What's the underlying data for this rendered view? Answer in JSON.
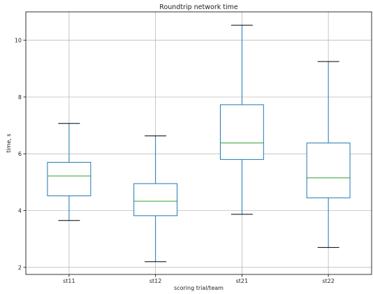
{
  "chart_data": {
    "type": "box",
    "title": "Roundtrip network time",
    "xlabel": "scoring trial/team",
    "ylabel": "time, s",
    "ylim": [
      1.75,
      11.0
    ],
    "yticks": [
      2,
      4,
      6,
      8,
      10
    ],
    "grid": true,
    "categories": [
      "st11",
      "st12",
      "st21",
      "st22"
    ],
    "boxes": [
      {
        "category": "st11",
        "whisker_low": 3.65,
        "q1": 4.52,
        "median": 5.22,
        "q3": 5.7,
        "whisker_high": 7.07
      },
      {
        "category": "st12",
        "whisker_low": 2.2,
        "q1": 3.82,
        "median": 4.33,
        "q3": 4.95,
        "whisker_high": 6.63
      },
      {
        "category": "st21",
        "whisker_low": 3.87,
        "q1": 5.8,
        "median": 6.38,
        "q3": 7.73,
        "whisker_high": 10.53
      },
      {
        "category": "st22",
        "whisker_low": 2.7,
        "q1": 4.45,
        "median": 5.15,
        "q3": 6.38,
        "whisker_high": 9.25
      }
    ],
    "colors": {
      "box": "#1f77b4",
      "median": "#2ca02c",
      "grid": "#b0b0b0",
      "axis": "#000000"
    }
  }
}
